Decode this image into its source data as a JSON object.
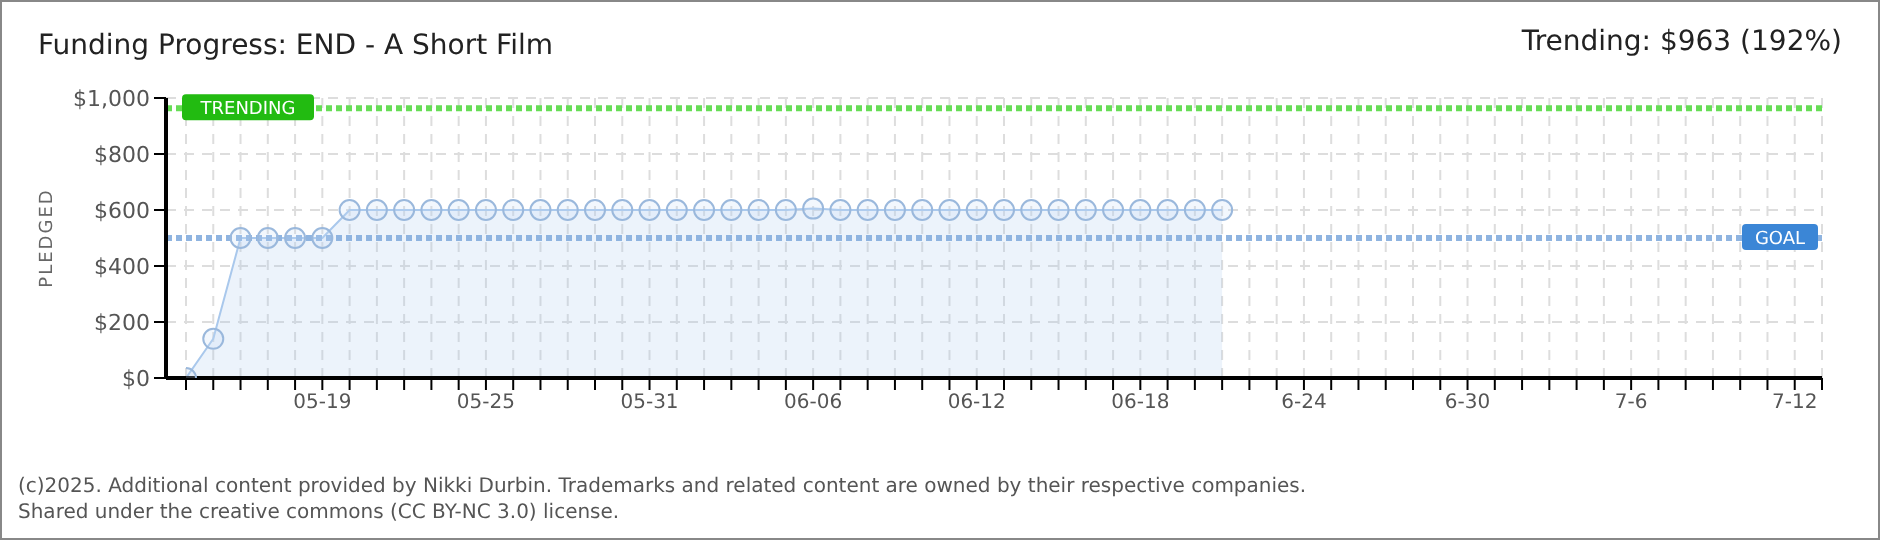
{
  "chart_data": {
    "type": "area",
    "title": "Funding Progress: END - A Short Film",
    "subtitle": "Trending: $963 (192%)",
    "ylabel": "PLEDGED",
    "categories": [
      null,
      null,
      null,
      null,
      null,
      "05-19",
      null,
      null,
      null,
      null,
      null,
      "05-25",
      null,
      null,
      null,
      null,
      null,
      "05-31",
      null,
      null,
      null,
      null,
      null,
      "06-06",
      null,
      null,
      null,
      null,
      null,
      "06-12",
      null,
      null,
      null,
      null,
      null,
      "06-18",
      null,
      null,
      null,
      null,
      null,
      "6-24",
      null,
      null,
      null,
      null,
      null,
      "6-30",
      null,
      null,
      null,
      null,
      null,
      "7-6",
      null,
      null,
      null,
      null,
      null,
      "7-12",
      null
    ],
    "series": [
      {
        "color": "#a9c8ec",
        "values": [
          0,
          140,
          500,
          500,
          500,
          500,
          600,
          600,
          600,
          600,
          600,
          600,
          600,
          600,
          600,
          600,
          600,
          600,
          600,
          600,
          600,
          600,
          600,
          605,
          600,
          600,
          600,
          600,
          600,
          600,
          600,
          600,
          600,
          600,
          600,
          600,
          600,
          600,
          600,
          null,
          null,
          null,
          null,
          null,
          null,
          null,
          null,
          null,
          null,
          null,
          null,
          null,
          null,
          null,
          null,
          null,
          null,
          null,
          null,
          null,
          null
        ]
      }
    ],
    "ylim": [
      0,
      1000
    ],
    "yticks": [
      {
        "value": 0,
        "label": "$0"
      },
      {
        "value": 200,
        "label": "$200"
      },
      {
        "value": 400,
        "label": "$400"
      },
      {
        "value": 600,
        "label": "$600"
      },
      {
        "value": 800,
        "label": "$800"
      },
      {
        "value": 1000,
        "label": "$1,000"
      }
    ],
    "grid": true,
    "marker": "circle",
    "line_style": "solid",
    "ref_lines": [
      {
        "axis": "y",
        "value": 963,
        "label": "TRENDING",
        "color": "#66dd55",
        "line_style": "dotted"
      },
      {
        "axis": "y",
        "value": 500,
        "label": "GOAL",
        "color": "#8fb4e0",
        "line_style": "dotted"
      }
    ],
    "annotations": [
      "(c)2025. Additional content provided by Nikki Durbin. Trademarks and related content are owned by their respective companies.",
      "Shared under the creative commons (CC BY-NC 3.0) license."
    ]
  }
}
